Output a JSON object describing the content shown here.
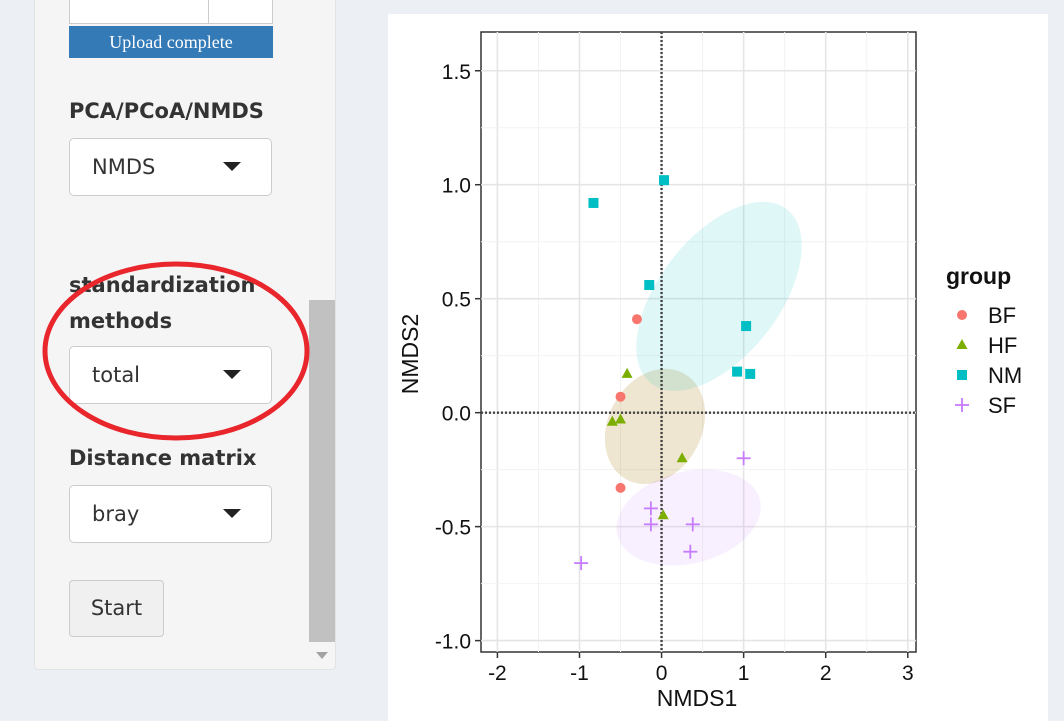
{
  "sidebar": {
    "upload_status": "Upload complete",
    "ordination": {
      "label": "PCA/PCoA/NMDS",
      "value": "NMDS"
    },
    "standardization": {
      "label_line1": "standardization",
      "label_line2": "methods",
      "value": "total"
    },
    "distance": {
      "label": "Distance matrix",
      "value": "bray"
    },
    "start_label": "Start"
  },
  "colors": {
    "BF": "#F8766D",
    "HF": "#7CAE00",
    "NM": "#00BFC4",
    "SF": "#C77CFF",
    "upload_bar": "#337ab7",
    "annotation": "#e8262c"
  },
  "chart_data": {
    "type": "scatter",
    "xlabel": "NMDS1",
    "ylabel": "NMDS2",
    "xlim": [
      -2.2,
      3.1
    ],
    "ylim": [
      -1.05,
      1.67
    ],
    "xticks": [
      -2,
      -1,
      0,
      1,
      2,
      3
    ],
    "yticks": [
      -1.0,
      -0.5,
      0.0,
      0.5,
      1.0,
      1.5
    ],
    "ytick_labels": [
      "-1.0",
      "-0.5",
      "0.0",
      "0.5",
      "1.0",
      "1.5"
    ],
    "grid": true,
    "reference_lines": {
      "x": 0,
      "y": 0,
      "style": "dotted"
    },
    "legend": {
      "title": "group",
      "position": "right"
    },
    "series": [
      {
        "name": "BF",
        "marker": "circle",
        "points": [
          [
            -0.3,
            0.41
          ],
          [
            -0.5,
            0.07
          ],
          [
            -0.5,
            -0.33
          ]
        ],
        "ellipse": {
          "cx": -0.08,
          "cy": -0.06,
          "rx": 0.57,
          "ry": 1.47,
          "angle": 28
        }
      },
      {
        "name": "HF",
        "marker": "triangle",
        "points": [
          [
            -0.42,
            0.17
          ],
          [
            -0.6,
            -0.04
          ],
          [
            -0.5,
            -0.03
          ],
          [
            0.25,
            -0.2
          ],
          [
            0.02,
            -0.45
          ]
        ],
        "ellipse": {
          "cx": -0.08,
          "cy": -0.06,
          "rx": 0.57,
          "ry": 1.47,
          "angle": 28
        }
      },
      {
        "name": "NM",
        "marker": "square",
        "points": [
          [
            -0.83,
            0.92
          ],
          [
            0.03,
            1.02
          ],
          [
            -0.15,
            0.56
          ],
          [
            1.03,
            0.38
          ],
          [
            0.92,
            0.18
          ],
          [
            1.08,
            0.17
          ]
        ],
        "ellipse": {
          "cx": 0.7,
          "cy": 0.51,
          "rx": 0.73,
          "ry": 2.69,
          "angle": 38
        }
      },
      {
        "name": "SF",
        "marker": "plus",
        "points": [
          [
            1.0,
            -0.2
          ],
          [
            -0.13,
            -0.42
          ],
          [
            -0.13,
            -0.49
          ],
          [
            0.38,
            -0.49
          ],
          [
            0.35,
            -0.61
          ],
          [
            -0.98,
            -0.66
          ]
        ],
        "ellipse": {
          "cx": 0.33,
          "cy": -0.46,
          "rx": 0.56,
          "ry": 1.79,
          "angle": 76
        }
      }
    ]
  }
}
